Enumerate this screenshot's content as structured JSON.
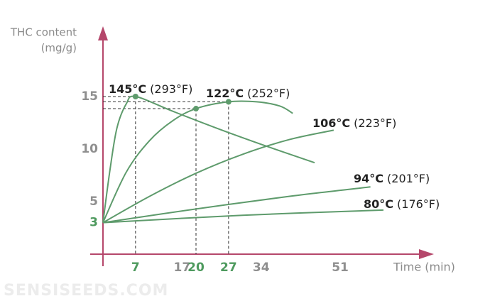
{
  "chart_data": {
    "type": "line",
    "y_label": [
      "THC content",
      "(mg/g)"
    ],
    "x_label": "Time (min)",
    "watermark": "SENSISEEDS.COM",
    "xlim": [
      0,
      70
    ],
    "ylim": [
      0,
      21
    ],
    "xticks": [
      7,
      17,
      20,
      27,
      34,
      51
    ],
    "yticks": [
      3,
      5,
      10,
      15
    ],
    "line_color": "#5e9b6c",
    "axis_color": "#b5476b",
    "tick_color": "#8f8f8f",
    "highlight_color": "#4e9a5e",
    "series": [
      {
        "name": "145°C",
        "fahrenheit": "(293°F)",
        "x": [
          0,
          1.5,
          3,
          5,
          7,
          15,
          25,
          35,
          45.5
        ],
        "values": [
          3,
          8,
          12,
          14.3,
          15,
          13.6,
          11.9,
          10.3,
          8.7
        ]
      },
      {
        "name": "122°C",
        "fahrenheit": "(252°F)",
        "x": [
          0,
          5,
          10,
          15,
          20,
          27,
          33,
          38,
          40.8
        ],
        "values": [
          3,
          7.8,
          10.8,
          12.7,
          13.85,
          14.5,
          14.5,
          14.1,
          13.4
        ]
      },
      {
        "name": "106°C",
        "fahrenheit": "(223°F)",
        "x": [
          0,
          10,
          20,
          30,
          40,
          49.6
        ],
        "values": [
          3,
          5.5,
          7.7,
          9.5,
          10.9,
          11.8
        ]
      },
      {
        "name": "94°C",
        "fahrenheit": "(201°F)",
        "x": [
          0,
          20,
          40,
          57.5
        ],
        "values": [
          3,
          4.3,
          5.5,
          6.4
        ]
      },
      {
        "name": "80°C",
        "fahrenheit": "(176°F)",
        "x": [
          0,
          30,
          60.3
        ],
        "values": [
          3,
          3.7,
          4.2
        ]
      }
    ],
    "markers": [
      {
        "x": 7,
        "y": 15
      },
      {
        "x": 20,
        "y": 13.85
      },
      {
        "x": 27,
        "y": 14.5
      }
    ]
  }
}
